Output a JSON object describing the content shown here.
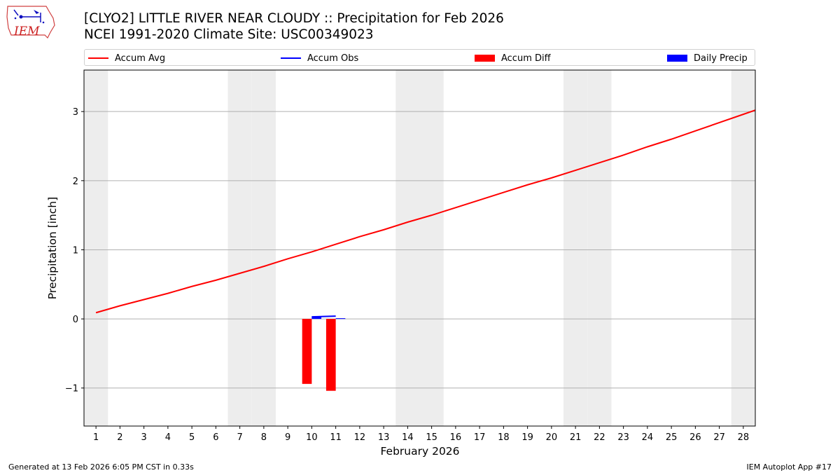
{
  "header": {
    "title": "[CLYO2] LITTLE RIVER NEAR CLOUDY :: Precipitation for Feb 2026",
    "subtitle": "NCEI 1991-2020 Climate Site: USC00349023",
    "logo_text": "IEM"
  },
  "footer": {
    "left": "Generated at 13 Feb 2026 6:05 PM CST in 0.33s",
    "right": "IEM Autoplot App #17"
  },
  "colors": {
    "avg": "#ff0000",
    "obs": "#0000ff",
    "diff": "#ff0000",
    "daily": "#0000ff",
    "weekend": "#ededed",
    "grid": "#b0b0b0"
  },
  "chart_data": {
    "type": "line",
    "title": "[CLYO2] LITTLE RIVER NEAR CLOUDY :: Precipitation for Feb 2026",
    "xlabel": "February 2026",
    "ylabel": "Precipitation [inch]",
    "xlim": [
      0.5,
      28.5
    ],
    "ylim": [
      -1.55,
      3.6
    ],
    "grid": "y",
    "legend_position": "top",
    "x": [
      1,
      2,
      3,
      4,
      5,
      6,
      7,
      8,
      9,
      10,
      11,
      12,
      13,
      14,
      15,
      16,
      17,
      18,
      19,
      20,
      21,
      22,
      23,
      24,
      25,
      26,
      27,
      28
    ],
    "x_tick_labels": [
      "1",
      "2",
      "3",
      "4",
      "5",
      "6",
      "7",
      "8",
      "9",
      "10",
      "11",
      "12",
      "13",
      "14",
      "15",
      "16",
      "17",
      "18",
      "19",
      "20",
      "21",
      "22",
      "23",
      "24",
      "25",
      "26",
      "27",
      "28"
    ],
    "y_ticks": [
      -1,
      0,
      1,
      2,
      3
    ],
    "y_tick_labels": [
      "−1",
      "0",
      "1",
      "2",
      "3"
    ],
    "weekend_days": [
      1,
      7,
      8,
      14,
      15,
      21,
      22,
      28
    ],
    "series": [
      {
        "name": "Accum Avg",
        "kind": "line",
        "values": [
          0.09,
          0.19,
          0.28,
          0.37,
          0.47,
          0.56,
          0.66,
          0.76,
          0.87,
          0.97,
          1.08,
          1.19,
          1.29,
          1.4,
          1.5,
          1.61,
          1.72,
          1.83,
          1.94,
          2.04,
          2.15,
          2.26,
          2.37,
          2.49,
          2.6,
          2.72,
          2.84,
          2.96
        ]
      },
      {
        "name": "Accum Obs",
        "kind": "line",
        "x": [
          10,
          11
        ],
        "values": [
          0.03,
          0.04
        ]
      },
      {
        "name": "Accum Diff",
        "kind": "bar",
        "x": [
          10,
          11
        ],
        "values": [
          -0.94,
          -1.04
        ]
      },
      {
        "name": "Daily Precip",
        "kind": "bar",
        "x": [
          10,
          11
        ],
        "values": [
          0.03,
          0.01
        ]
      }
    ]
  }
}
